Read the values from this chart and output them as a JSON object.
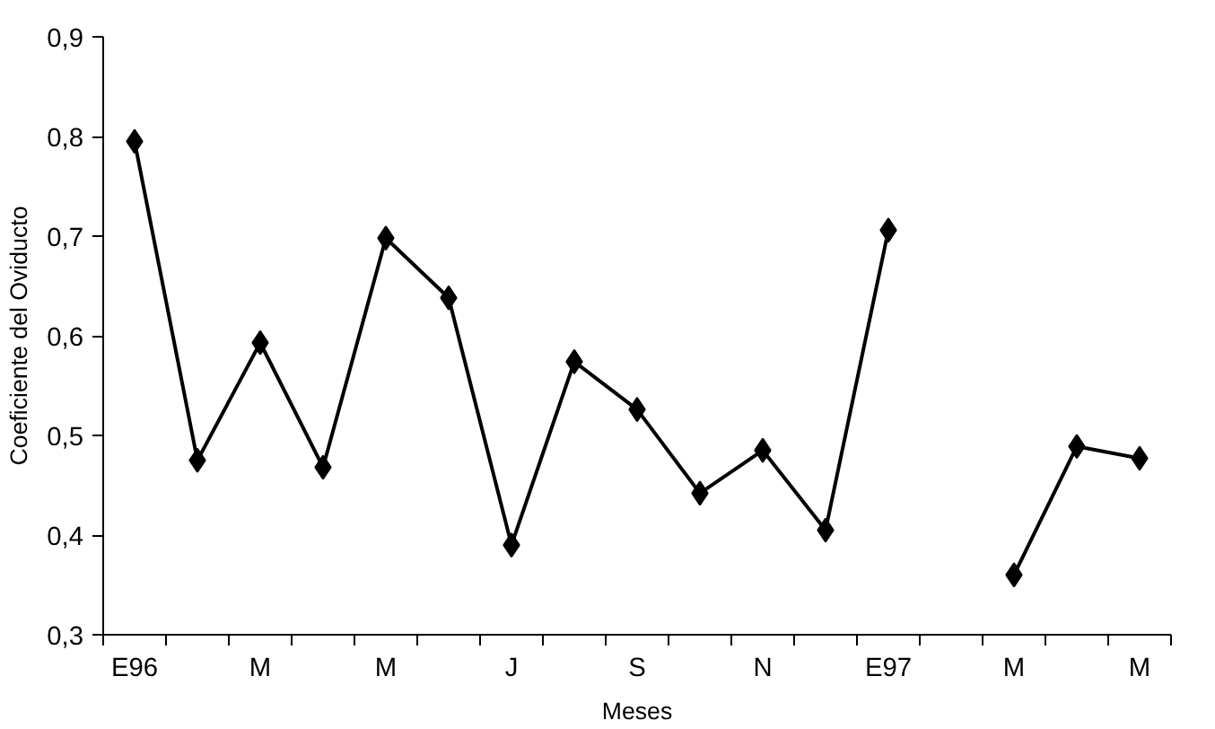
{
  "chart_data": {
    "type": "line",
    "xlabel": "Meses",
    "ylabel": "Coeficiente del Oviducto",
    "categories": [
      "E96",
      null,
      "M",
      null,
      "M",
      null,
      "J",
      null,
      "S",
      null,
      "N",
      null,
      "E97",
      null,
      "M",
      null,
      "M"
    ],
    "series": [
      {
        "color": "#000000",
        "values": [
          0.795,
          0.475,
          0.593,
          0.468,
          0.698,
          0.638,
          0.39,
          0.574,
          0.526,
          0.442,
          0.485,
          0.405,
          0.706,
          null,
          0.36,
          0.489,
          0.477
        ]
      }
    ],
    "ylim": [
      0.3,
      0.9
    ],
    "yticks": [
      {
        "value": 0.3,
        "label": "0,3"
      },
      {
        "value": 0.4,
        "label": "0,4"
      },
      {
        "value": 0.5,
        "label": "0,5"
      },
      {
        "value": 0.6,
        "label": "0,6"
      },
      {
        "value": 0.7,
        "label": "0,7"
      },
      {
        "value": 0.8,
        "label": "0,8"
      },
      {
        "value": 0.9,
        "label": "0,9"
      }
    ],
    "grid": false,
    "marker": "diamond",
    "line_style": "solid"
  }
}
